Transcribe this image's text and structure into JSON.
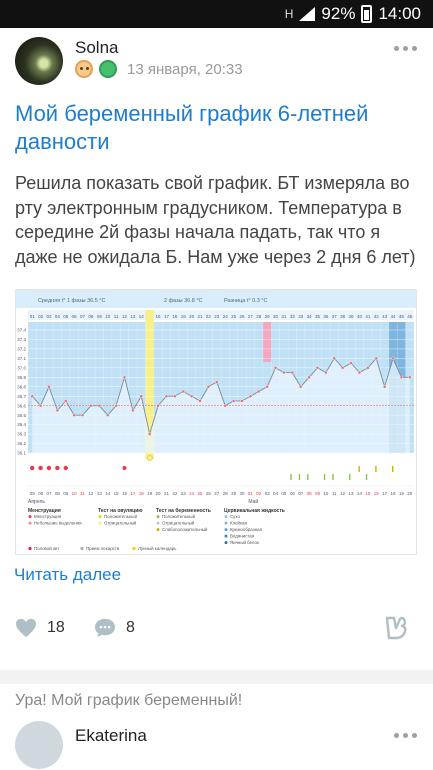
{
  "status_bar": {
    "battery": "92%",
    "time": "14:00",
    "network": "H"
  },
  "post": {
    "author": "Solna",
    "date": "13 января, 20:33",
    "title": "Мой беременный график 6-летней давности",
    "body": "Решила показать свой график. БТ измеряла во рту электронным градусником. Температура в середине 2й фазы начала падать, так что я даже не ожидала Б. Нам уже через 2 дня 6 лет)",
    "read_more": "Читать далее",
    "likes": "18",
    "comments": "8"
  },
  "next_post": {
    "title": "Ура! Мой график беременный!",
    "author": "Ekaterina"
  },
  "colors": {
    "accent": "#1d7ecf",
    "chart_bg": "#bfe0f5",
    "ovulation": "#f7ef8a",
    "marker": "#f4a7c1"
  },
  "icons": [
    "heart-icon",
    "comment-icon",
    "share-icon",
    "more-icon",
    "signal-icon",
    "battery-icon"
  ],
  "chart_data": {
    "type": "line",
    "header": [
      "Средняя t° 1 фазы 36.5 °C",
      "2 фазы 36.8 °C",
      "Разница t° 0.3 °C"
    ],
    "y_ticks": [
      "37.4",
      "37.3",
      "37.2",
      "37.1",
      "37.0",
      "36.9",
      "36.8",
      "36.7",
      "36.6",
      "36.5",
      "36.4",
      "36.3",
      "36.2",
      "36.1"
    ],
    "ylim": [
      36.1,
      37.4
    ],
    "cycle_days": [
      "01",
      "02",
      "03",
      "04",
      "05",
      "06",
      "07",
      "08",
      "09",
      "10",
      "11",
      "12",
      "13",
      "14",
      "15",
      "16",
      "17",
      "18",
      "19",
      "20",
      "21",
      "22",
      "23",
      "24",
      "25",
      "26",
      "27",
      "28",
      "29",
      "30",
      "31",
      "32",
      "33",
      "34",
      "35",
      "36",
      "37",
      "38",
      "39",
      "40",
      "41",
      "42",
      "43",
      "44",
      "45",
      "46"
    ],
    "values": [
      36.7,
      36.6,
      36.8,
      36.55,
      36.65,
      36.5,
      36.5,
      36.6,
      36.6,
      36.5,
      36.6,
      36.9,
      36.55,
      36.7,
      36.3,
      36.6,
      36.7,
      36.7,
      36.75,
      36.7,
      36.65,
      36.8,
      36.85,
      36.6,
      36.65,
      36.65,
      36.7,
      36.75,
      36.8,
      37.0,
      36.95,
      36.95,
      36.8,
      36.9,
      37.0,
      36.95,
      37.1,
      37.0,
      37.05,
      36.95,
      37.0,
      37.1,
      36.8,
      37.1,
      36.9,
      36.9
    ],
    "ovulation_day": 15,
    "dates": [
      "05",
      "06",
      "07",
      "08",
      "09",
      "10",
      "11",
      "12",
      "13",
      "14",
      "15",
      "16",
      "17",
      "18",
      "19",
      "20",
      "21",
      "22",
      "23",
      "24",
      "25",
      "26",
      "27",
      "28",
      "29",
      "30",
      "01",
      "02",
      "03",
      "04",
      "05",
      "06",
      "07",
      "08",
      "09",
      "10",
      "11",
      "12",
      "13",
      "14",
      "15",
      "16",
      "17",
      "18",
      "19",
      "20"
    ],
    "month_labels": [
      "Апрель",
      "Май"
    ],
    "legend": [
      {
        "heading": "Менструация",
        "items": [
          "Менструация",
          "Небольшие выделения"
        ]
      },
      {
        "heading": "Тест на овуляцию",
        "items": [
          "Положительный",
          "Отрицательный"
        ]
      },
      {
        "heading": "Тест на беременность",
        "items": [
          "Положительный",
          "Отрицательный",
          "Слабоположительный"
        ]
      },
      {
        "heading": "Цервикальная жидкость",
        "items": [
          "Сухо",
          "Клейкая",
          "Кремообразная",
          "Водянистая",
          "Яичный белок"
        ]
      }
    ],
    "footer": [
      "Половой акт",
      "Прием лекарств",
      "Лунный календарь"
    ]
  }
}
